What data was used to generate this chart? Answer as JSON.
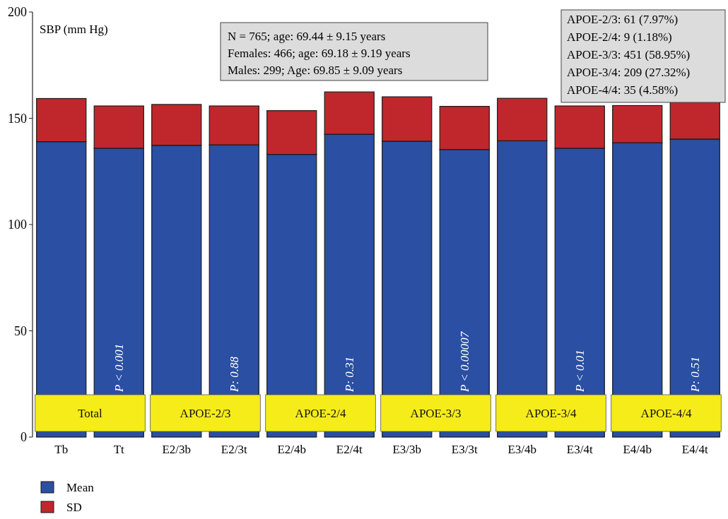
{
  "chart_data": {
    "type": "bar",
    "stacked": true,
    "ylabel": "SBP (mm Hg)",
    "categories": [
      "Tb",
      "Tt",
      "E2/3b",
      "E2/3t",
      "E2/4b",
      "E2/4t",
      "E3/3b",
      "E3/3t",
      "E3/4b",
      "E3/4t",
      "E4/4b",
      "E4/4t"
    ],
    "series": [
      {
        "name": "Mean",
        "color": "#2a4fa3",
        "values": [
          139.0,
          135.9,
          137.3,
          137.5,
          133.0,
          142.5,
          139.2,
          135.3,
          139.4,
          135.9,
          138.5,
          140.2
        ]
      },
      {
        "name": "SD",
        "color": "#c0272d",
        "values": [
          20.3,
          19.9,
          19.2,
          18.3,
          20.6,
          19.9,
          20.9,
          20.3,
          20.0,
          19.9,
          17.5,
          17.8
        ]
      }
    ],
    "ylim": [
      0,
      200
    ],
    "yticks": [
      0,
      50,
      100,
      150,
      200
    ],
    "legend": "bottom left",
    "annotations": [
      "N = 765; age: 69.44 ± 9.15 years",
      "Females: 466; age: 69.18 ± 9.19 years",
      "Males: 299; Age: 69.85 ± 9.09 years",
      "APOE-2/3: 61 (7.97%)",
      "APOE-2/4: 9 (1.18%)",
      "APOE-3/3: 451 (58.95%)",
      "APOE-3/4: 209 (27.32%)",
      "APOE-4/4: 35 (4.58%)",
      "Total",
      "APOE-2/3",
      "APOE-2/4",
      "APOE-3/3",
      "APOE-3/4",
      "APOE-4/4",
      "P < 0.001",
      "P: 0.88",
      "P: 0.31",
      "P < 0.00007",
      "P < 0.01",
      "P: 0.51"
    ]
  }
}
